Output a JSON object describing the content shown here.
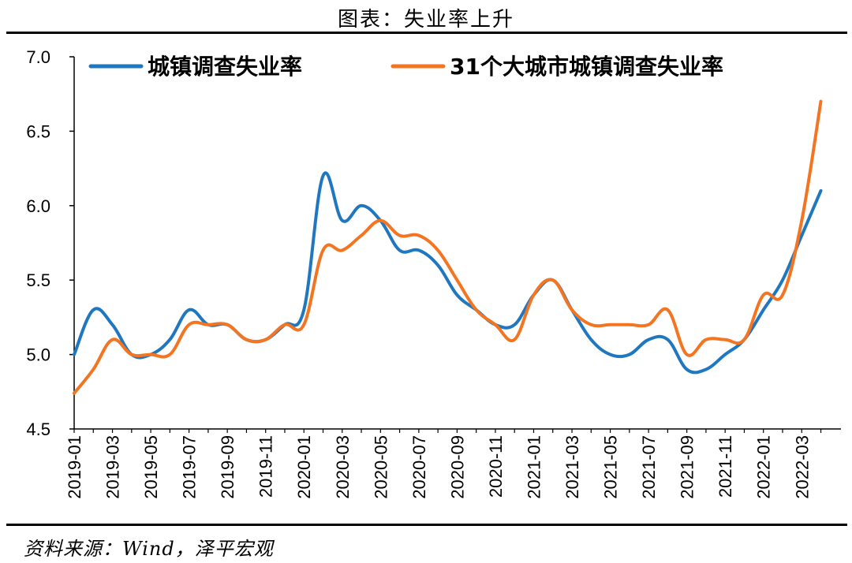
{
  "header": {
    "title": "图表：失业率上升"
  },
  "footer": {
    "source": "资料来源：Wind，泽平宏观"
  },
  "chart_data": {
    "type": "line",
    "title": "图表：失业率上升",
    "xlabel": "",
    "ylabel": "",
    "ylim": [
      4.5,
      7.0
    ],
    "yticks": [
      "4.5",
      "5.0",
      "5.5",
      "6.0",
      "6.5",
      "7.0"
    ],
    "x": [
      "2019-01",
      "2019-02",
      "2019-03",
      "2019-04",
      "2019-05",
      "2019-06",
      "2019-07",
      "2019-08",
      "2019-09",
      "2019-10",
      "2019-11",
      "2019-12",
      "2020-01",
      "2020-02",
      "2020-03",
      "2020-04",
      "2020-05",
      "2020-06",
      "2020-07",
      "2020-08",
      "2020-09",
      "2020-10",
      "2020-11",
      "2020-12",
      "2021-01",
      "2021-02",
      "2021-03",
      "2021-04",
      "2021-05",
      "2021-06",
      "2021-07",
      "2021-08",
      "2021-09",
      "2021-10",
      "2021-11",
      "2021-12",
      "2022-01",
      "2022-02",
      "2022-03",
      "2022-04"
    ],
    "xticks": [
      "2019-01",
      "2019-03",
      "2019-05",
      "2019-07",
      "2019-09",
      "2019-11",
      "2020-01",
      "2020-03",
      "2020-05",
      "2020-07",
      "2020-09",
      "2020-11",
      "2021-01",
      "2021-03",
      "2021-05",
      "2021-07",
      "2021-09",
      "2021-11",
      "2022-01",
      "2022-03"
    ],
    "grid": false,
    "legend": "top",
    "series": [
      {
        "name": "城镇调查失业率",
        "color": "#1F77C0",
        "values": [
          5.0,
          5.3,
          5.2,
          5.0,
          5.0,
          5.1,
          5.3,
          5.2,
          5.2,
          5.1,
          5.1,
          5.2,
          5.3,
          6.2,
          5.9,
          6.0,
          5.9,
          5.7,
          5.7,
          5.6,
          5.4,
          5.3,
          5.2,
          5.2,
          5.4,
          5.5,
          5.3,
          5.1,
          5.0,
          5.0,
          5.1,
          5.1,
          4.9,
          4.9,
          5.0,
          5.1,
          5.3,
          5.5,
          5.8,
          6.1
        ]
      },
      {
        "name": "31个大城市城镇调查失业率",
        "color": "#F47521",
        "values": [
          4.74,
          4.9,
          5.1,
          5.0,
          5.0,
          5.0,
          5.2,
          5.2,
          5.2,
          5.1,
          5.1,
          5.2,
          5.2,
          5.7,
          5.7,
          5.8,
          5.9,
          5.8,
          5.8,
          5.7,
          5.5,
          5.3,
          5.2,
          5.1,
          5.4,
          5.5,
          5.3,
          5.2,
          5.2,
          5.2,
          5.2,
          5.3,
          5.0,
          5.1,
          5.1,
          5.1,
          5.4,
          5.4,
          5.9,
          6.7
        ]
      }
    ]
  }
}
